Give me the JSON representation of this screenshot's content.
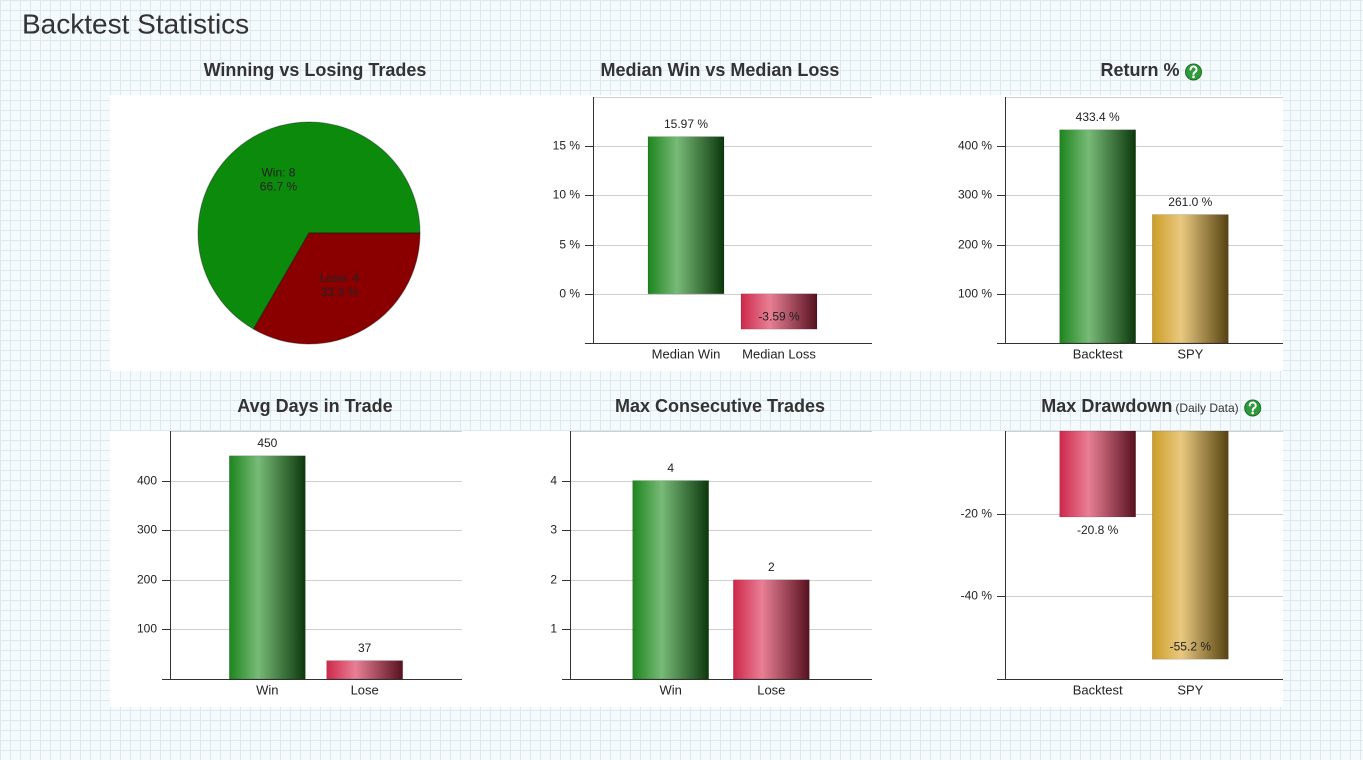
{
  "title": "Backtest Statistics",
  "chart_data": [
    {
      "type": "pie",
      "title": "Winning vs Losing Trades",
      "values": [
        8,
        4
      ],
      "value_labels": [
        "Win: 8",
        "Lose: 4"
      ],
      "percent_labels": [
        "66.7 %",
        "33.3 %"
      ],
      "colors": [
        "#0c8a0c",
        "#8a0000"
      ]
    },
    {
      "type": "bar",
      "title": "Median Win vs Median Loss",
      "categories": [
        "Median Win",
        "Median Loss"
      ],
      "values": [
        15.97,
        -3.59
      ],
      "value_labels": [
        "15.97 %",
        "-3.59 %"
      ],
      "colors": [
        "#1e8c1e",
        "#d92a4e"
      ],
      "ylim": [
        -5,
        20
      ],
      "yticks": [
        {
          "value": 0,
          "label": "0 %"
        },
        {
          "value": 5,
          "label": "5 %"
        },
        {
          "value": 10,
          "label": "10 %"
        },
        {
          "value": 15,
          "label": "15 %"
        }
      ],
      "grid": true
    },
    {
      "type": "bar",
      "title": "Return %",
      "help": true,
      "categories": [
        "Backtest",
        "SPY"
      ],
      "values": [
        433.4,
        261.0
      ],
      "value_labels": [
        "433.4 %",
        "261.0 %"
      ],
      "colors": [
        "#1e8c1e",
        "#d8a52a"
      ],
      "ylim": [
        0,
        500
      ],
      "yticks": [
        {
          "value": 100,
          "label": "100 %"
        },
        {
          "value": 200,
          "label": "200 %"
        },
        {
          "value": 300,
          "label": "300 %"
        },
        {
          "value": 400,
          "label": "400 %"
        }
      ],
      "grid": true
    },
    {
      "type": "bar",
      "title": "Avg Days in Trade",
      "categories": [
        "Win",
        "Lose"
      ],
      "values": [
        450,
        37
      ],
      "colors": [
        "#1e8c1e",
        "#d92a4e"
      ],
      "ylim": [
        0,
        500
      ],
      "yticks": [
        100,
        200,
        300,
        400
      ],
      "grid": true
    },
    {
      "type": "bar",
      "title": "Max Consecutive Trades",
      "categories": [
        "Win",
        "Lose"
      ],
      "values": [
        4,
        2
      ],
      "colors": [
        "#1e8c1e",
        "#d92a4e"
      ],
      "ylim": [
        0,
        5
      ],
      "yticks": [
        1,
        2,
        3,
        4
      ],
      "grid": true
    },
    {
      "type": "bar",
      "title": "Max Drawdown",
      "title_note": "(Daily Data)",
      "help": true,
      "categories": [
        "Backtest",
        "SPY"
      ],
      "values": [
        -20.8,
        -55.2
      ],
      "value_labels": [
        "-20.8 %",
        "-55.2 %"
      ],
      "colors": [
        "#d92a4e",
        "#d8a52a"
      ],
      "ylim": [
        -60,
        0
      ],
      "yticks": [
        {
          "value": -40,
          "label": "-40 %"
        },
        {
          "value": -20,
          "label": "-20 %"
        }
      ],
      "grid": true
    }
  ]
}
